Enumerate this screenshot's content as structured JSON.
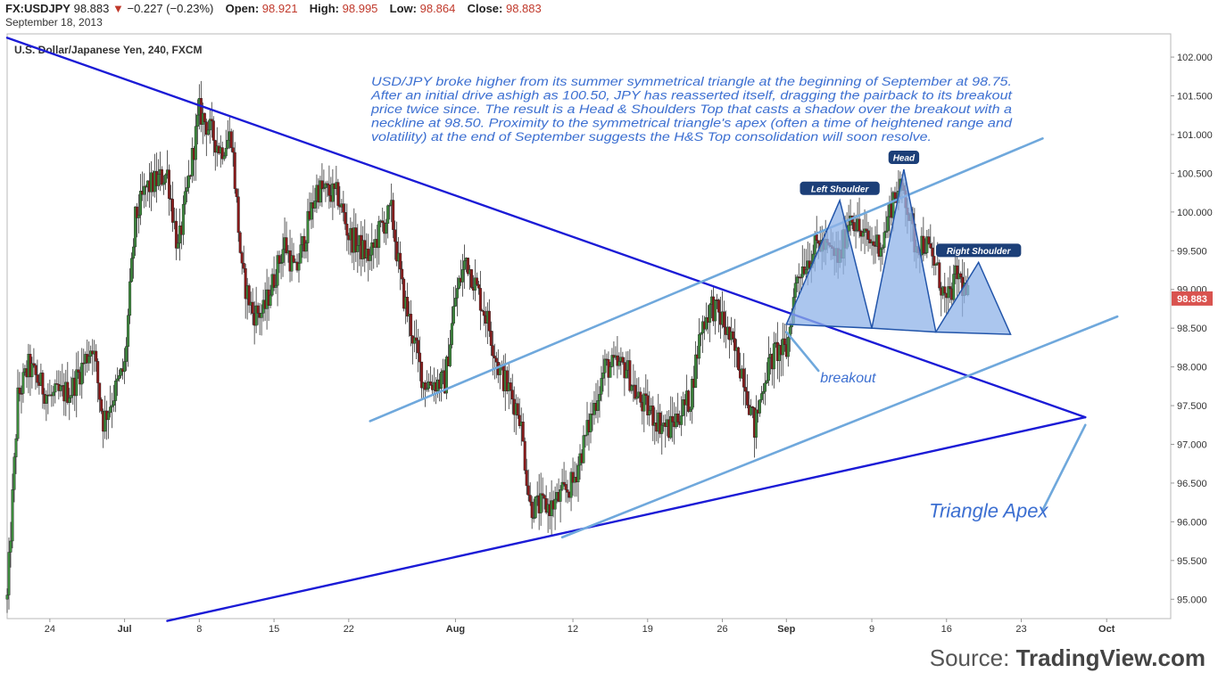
{
  "header": {
    "symbol": "FX:USDJPY",
    "last": "98.883",
    "change": "−0.227 (−0.23%)",
    "open_label": "Open:",
    "open": "98.921",
    "high_label": "High:",
    "high": "98.995",
    "low_label": "Low:",
    "low": "98.864",
    "close_label": "Close:",
    "close": "98.883",
    "date": "September 18, 2013"
  },
  "colors": {
    "up": "#3c8a3c",
    "down": "#8b1a1a",
    "trend_dark": "#1b1bd6",
    "trend_light": "#6fa8dc",
    "pattern_fill": "#8fb3e8",
    "annotation_text": "#3c6fd1",
    "price_badge": "#d9534f"
  },
  "source": {
    "prefix": "Source:",
    "brand": "TradingView.com"
  },
  "chart_data": {
    "type": "candlestick",
    "title": "U.S. Dollar/Japanese Yen, 240, FXCM",
    "xlabel": "",
    "ylabel": "",
    "ylim": [
      94.75,
      102.3
    ],
    "y_ticks": [
      "95.000",
      "95.500",
      "96.000",
      "96.500",
      "97.000",
      "97.500",
      "98.000",
      "98.500",
      "99.000",
      "99.500",
      "100.000",
      "100.500",
      "101.000",
      "101.500",
      "102.000"
    ],
    "x_ticks": [
      {
        "label": "24",
        "date": "2013-06-24"
      },
      {
        "label": "Jul",
        "date": "2013-07-01"
      },
      {
        "label": "8",
        "date": "2013-07-08"
      },
      {
        "label": "15",
        "date": "2013-07-15"
      },
      {
        "label": "22",
        "date": "2013-07-22"
      },
      {
        "label": "Aug",
        "date": "2013-08-01"
      },
      {
        "label": "12",
        "date": "2013-08-12"
      },
      {
        "label": "19",
        "date": "2013-08-19"
      },
      {
        "label": "26",
        "date": "2013-08-26"
      },
      {
        "label": "Sep",
        "date": "2013-09-01"
      },
      {
        "label": "9",
        "date": "2013-09-09"
      },
      {
        "label": "16",
        "date": "2013-09-16"
      },
      {
        "label": "23",
        "date": "2013-09-23"
      },
      {
        "label": "Oct",
        "date": "2013-10-01"
      }
    ],
    "x_range": [
      "2013-06-20",
      "2013-10-07"
    ],
    "last_price": "98.883",
    "price_path": [
      {
        "date": "2013-06-20",
        "price": 95.0
      },
      {
        "date": "2013-06-21",
        "price": 97.6
      },
      {
        "date": "2013-06-22",
        "price": 98.0
      },
      {
        "date": "2013-06-24",
        "price": 97.6
      },
      {
        "date": "2013-06-26",
        "price": 97.7
      },
      {
        "date": "2013-06-28",
        "price": 98.3
      },
      {
        "date": "2013-06-29",
        "price": 97.3
      },
      {
        "date": "2013-07-01",
        "price": 98.0
      },
      {
        "date": "2013-07-02",
        "price": 99.9
      },
      {
        "date": "2013-07-03",
        "price": 100.3
      },
      {
        "date": "2013-07-05",
        "price": 100.5
      },
      {
        "date": "2013-07-06",
        "price": 99.5
      },
      {
        "date": "2013-07-08",
        "price": 101.3
      },
      {
        "date": "2013-07-10",
        "price": 100.8
      },
      {
        "date": "2013-07-11",
        "price": 101.0
      },
      {
        "date": "2013-07-12",
        "price": 99.2
      },
      {
        "date": "2013-07-13",
        "price": 98.7
      },
      {
        "date": "2013-07-14",
        "price": 98.7
      },
      {
        "date": "2013-07-16",
        "price": 99.6
      },
      {
        "date": "2013-07-17",
        "price": 99.2
      },
      {
        "date": "2013-07-19",
        "price": 100.3
      },
      {
        "date": "2013-07-21",
        "price": 100.2
      },
      {
        "date": "2013-07-22",
        "price": 99.7
      },
      {
        "date": "2013-07-24",
        "price": 99.4
      },
      {
        "date": "2013-07-25",
        "price": 99.8
      },
      {
        "date": "2013-07-26",
        "price": 100.0
      },
      {
        "date": "2013-07-27",
        "price": 99.0
      },
      {
        "date": "2013-07-29",
        "price": 97.8
      },
      {
        "date": "2013-07-31",
        "price": 97.8
      },
      {
        "date": "2013-08-01",
        "price": 98.9
      },
      {
        "date": "2013-08-02",
        "price": 99.4
      },
      {
        "date": "2013-08-04",
        "price": 98.6
      },
      {
        "date": "2013-08-05",
        "price": 98.0
      },
      {
        "date": "2013-08-07",
        "price": 97.4
      },
      {
        "date": "2013-08-08",
        "price": 96.2
      },
      {
        "date": "2013-08-10",
        "price": 96.2
      },
      {
        "date": "2013-08-12",
        "price": 96.5
      },
      {
        "date": "2013-08-14",
        "price": 97.5
      },
      {
        "date": "2013-08-15",
        "price": 98.0
      },
      {
        "date": "2013-08-17",
        "price": 98.0
      },
      {
        "date": "2013-08-18",
        "price": 97.6
      },
      {
        "date": "2013-08-20",
        "price": 97.3
      },
      {
        "date": "2013-08-21",
        "price": 97.2
      },
      {
        "date": "2013-08-23",
        "price": 97.6
      },
      {
        "date": "2013-08-24",
        "price": 98.5
      },
      {
        "date": "2013-08-25",
        "price": 98.8
      },
      {
        "date": "2013-08-26",
        "price": 98.6
      },
      {
        "date": "2013-08-28",
        "price": 97.9
      },
      {
        "date": "2013-08-29",
        "price": 97.2
      },
      {
        "date": "2013-08-30",
        "price": 97.9
      },
      {
        "date": "2013-08-31",
        "price": 98.2
      },
      {
        "date": "2013-09-01",
        "price": 98.2
      },
      {
        "date": "2013-09-02",
        "price": 99.2
      },
      {
        "date": "2013-09-04",
        "price": 99.6
      },
      {
        "date": "2013-09-06",
        "price": 99.4
      },
      {
        "date": "2013-09-07",
        "price": 100.0
      },
      {
        "date": "2013-09-08",
        "price": 99.7
      },
      {
        "date": "2013-09-09",
        "price": 99.6
      },
      {
        "date": "2013-09-10",
        "price": 99.6
      },
      {
        "date": "2013-09-11",
        "price": 100.2
      },
      {
        "date": "2013-09-12",
        "price": 100.3
      },
      {
        "date": "2013-09-13",
        "price": 99.6
      },
      {
        "date": "2013-09-14",
        "price": 99.6
      },
      {
        "date": "2013-09-15",
        "price": 99.3
      },
      {
        "date": "2013-09-16",
        "price": 98.8
      },
      {
        "date": "2013-09-17",
        "price": 99.2
      },
      {
        "date": "2013-09-18",
        "price": 98.9
      }
    ],
    "trendlines": [
      {
        "name": "triangle-upper",
        "style": "dark",
        "from": {
          "date": "2013-06-20",
          "price": 102.25
        },
        "to": {
          "date": "2013-09-29",
          "price": 97.35
        }
      },
      {
        "name": "triangle-lower",
        "style": "dark",
        "from": {
          "date": "2013-07-05",
          "price": 94.72
        },
        "to": {
          "date": "2013-09-29",
          "price": 97.35
        }
      },
      {
        "name": "channel-upper",
        "style": "light",
        "from": {
          "date": "2013-07-24",
          "price": 97.3
        },
        "to": {
          "date": "2013-09-25",
          "price": 100.95
        }
      },
      {
        "name": "channel-lower",
        "style": "light",
        "from": {
          "date": "2013-08-11",
          "price": 95.8
        },
        "to": {
          "date": "2013-10-02",
          "price": 98.65
        }
      },
      {
        "name": "apex-pointer",
        "style": "light",
        "from": {
          "date": "2013-09-29",
          "price": 97.25
        },
        "to": {
          "date": "2013-09-25",
          "price": 96.15
        }
      },
      {
        "name": "breakout-pointer",
        "style": "light",
        "from": {
          "date": "2013-09-01",
          "price": 98.45
        },
        "to": {
          "date": "2013-09-04",
          "price": 97.95
        }
      }
    ],
    "hs_pattern": [
      {
        "name": "left-shoulder",
        "points": [
          {
            "date": "2013-09-01",
            "price": 98.55
          },
          {
            "date": "2013-09-06",
            "price": 100.15
          },
          {
            "date": "2013-09-09",
            "price": 98.5
          }
        ]
      },
      {
        "name": "head",
        "points": [
          {
            "date": "2013-09-09",
            "price": 98.5
          },
          {
            "date": "2013-09-12",
            "price": 100.55
          },
          {
            "date": "2013-09-15",
            "price": 98.45
          }
        ]
      },
      {
        "name": "right-shoulder",
        "points": [
          {
            "date": "2013-09-15",
            "price": 98.45
          },
          {
            "date": "2013-09-19",
            "price": 99.35
          },
          {
            "date": "2013-09-22",
            "price": 98.42
          }
        ]
      }
    ],
    "labels": {
      "left_shoulder": "Left Shoulder",
      "head": "Head",
      "right_shoulder": "Right Shoulder",
      "breakout": "breakout",
      "apex": "Triangle Apex"
    },
    "annotation_lines": [
      "USD/JPY broke higher from its summer symmetrical triangle at the beginning of September at 98.75.",
      "After an initial drive ashigh as 100.50, JPY has reasserted itself, dragging the pairback to its breakout",
      "price twice since.  The result is a Head & Shoulders Top that casts a shadow over the breakout with a",
      "neckline at 98.50.  Proximity to the symmetrical triangle's apex (often a time of heightened range and",
      "volatility) at the end of September suggests the H&S Top consolidation will soon resolve."
    ]
  }
}
